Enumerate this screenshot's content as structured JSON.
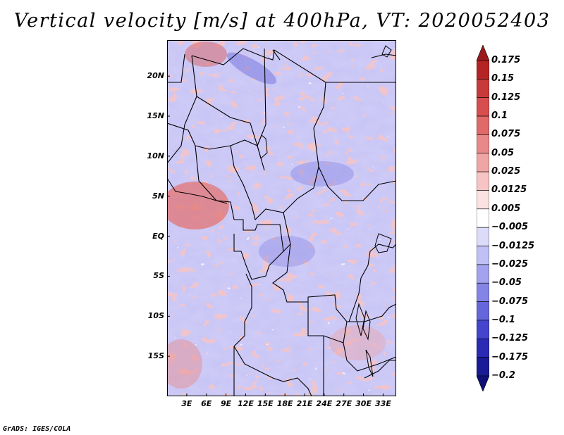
{
  "title": "Vertical velocity [m/s] at 400hPa, VT: 2020052403",
  "credit": "GrADS: IGES/COLA",
  "map": {
    "lon_min": 0,
    "lon_max": 35,
    "lat_min": -20,
    "lat_max": 24.5,
    "lat_ticks": [
      {
        "value": 20,
        "label": "20N"
      },
      {
        "value": 15,
        "label": "15N"
      },
      {
        "value": 10,
        "label": "10N"
      },
      {
        "value": 5,
        "label": "5N"
      },
      {
        "value": 0,
        "label": "EQ"
      },
      {
        "value": -5,
        "label": "5S"
      },
      {
        "value": -10,
        "label": "10S"
      },
      {
        "value": -15,
        "label": "15S"
      }
    ],
    "lon_ticks": [
      {
        "value": 3,
        "label": "3E"
      },
      {
        "value": 6,
        "label": "6E"
      },
      {
        "value": 9,
        "label": "9E"
      },
      {
        "value": 12,
        "label": "12E"
      },
      {
        "value": 15,
        "label": "15E"
      },
      {
        "value": 18,
        "label": "18E"
      },
      {
        "value": 21,
        "label": "21E"
      },
      {
        "value": 24,
        "label": "24E"
      },
      {
        "value": 27,
        "label": "27E"
      },
      {
        "value": 30,
        "label": "30E"
      },
      {
        "value": 33,
        "label": "33E"
      }
    ]
  },
  "colorbar": {
    "levels": [
      "0.175",
      "0.15",
      "0.125",
      "0.1",
      "0.075",
      "0.05",
      "0.025",
      "0.0125",
      "0.005",
      "-0.005",
      "-0.0125",
      "-0.025",
      "-0.05",
      "-0.075",
      "-0.1",
      "-0.125",
      "-0.175",
      "-0.2"
    ],
    "colors": [
      "#9b1b1b",
      "#b52424",
      "#c83a3a",
      "#d84e4e",
      "#e06a6a",
      "#e88888",
      "#f0a5a5",
      "#f6c4c4",
      "#fbe2e2",
      "#ffffff",
      "#dcdcfa",
      "#c0c0f4",
      "#a2a2ee",
      "#8484e6",
      "#6666dc",
      "#4444cc",
      "#2a2ab4",
      "#1a1a96",
      "#0f0f78"
    ]
  }
}
